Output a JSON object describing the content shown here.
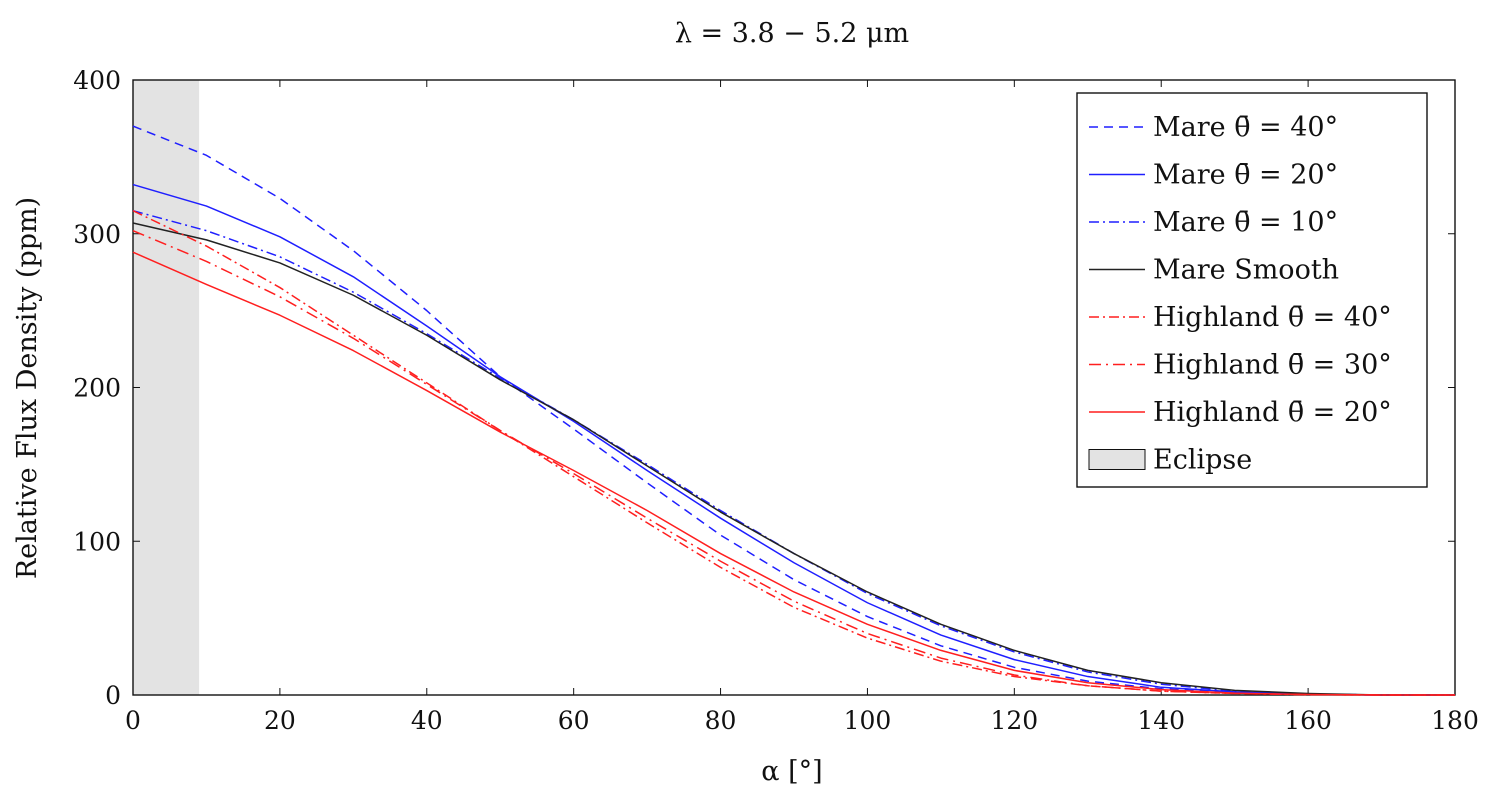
{
  "chart_data": {
    "type": "line",
    "title": "λ = 3.8 − 5.2 μm",
    "xlabel": "α [°]",
    "ylabel": "Relative Flux Density (ppm)",
    "xlim": [
      0,
      180
    ],
    "ylim": [
      0,
      400
    ],
    "xticks": [
      "0",
      "20",
      "40",
      "60",
      "80",
      "100",
      "120",
      "140",
      "160",
      "180"
    ],
    "yticks": [
      "0",
      "100",
      "200",
      "300",
      "400"
    ],
    "grid": false,
    "legend_position": "top-right",
    "shaded_region": {
      "name": "Eclipse",
      "x": [
        0,
        9
      ],
      "color": "#e3e3e3"
    },
    "x": [
      0,
      10,
      20,
      30,
      40,
      50,
      60,
      70,
      80,
      90,
      100,
      110,
      120,
      130,
      140,
      150,
      160,
      170,
      180
    ],
    "series": [
      {
        "name": "Mare θ̄ = 40°",
        "color": "#1f1fff",
        "dash": "dashed",
        "values": [
          370,
          351,
          323,
          289,
          250,
          207,
          173,
          138,
          104,
          75,
          51,
          32,
          18,
          9,
          4,
          1.5,
          0.5,
          0,
          0
        ]
      },
      {
        "name": "Mare θ̄ = 20°",
        "color": "#1f1fff",
        "dash": "solid",
        "values": [
          332,
          318,
          298,
          272,
          240,
          207,
          178,
          146,
          115,
          86,
          60,
          39,
          23,
          12,
          5,
          2,
          0.5,
          0,
          0
        ]
      },
      {
        "name": "Mare θ̄ = 10°",
        "color": "#1f1fff",
        "dash": "dashdot",
        "values": [
          315,
          302,
          285,
          262,
          235,
          206,
          179,
          150,
          120,
          92,
          66,
          45,
          28,
          15,
          7,
          2.5,
          0.6,
          0,
          0
        ]
      },
      {
        "name": "Mare Smooth",
        "color": "#222222",
        "dash": "solid",
        "values": [
          307,
          296,
          281,
          260,
          234,
          205,
          179,
          149,
          119,
          92,
          67,
          46,
          29,
          16,
          8,
          3,
          1,
          0,
          0
        ]
      },
      {
        "name": "Highland θ̄ = 40°",
        "color": "#ff1f1f",
        "dash": "dashdot",
        "values": [
          315,
          292,
          265,
          234,
          203,
          172,
          142,
          112,
          83,
          57,
          37,
          22,
          12,
          6,
          2.5,
          1,
          0.2,
          0,
          0
        ]
      },
      {
        "name": "Highland θ̄ = 30°",
        "color": "#ff1f1f",
        "dash": "dashdotted",
        "values": [
          302,
          282,
          259,
          232,
          202,
          172,
          144,
          115,
          87,
          61,
          40,
          24,
          13,
          6,
          2.5,
          1,
          0.2,
          0,
          0
        ]
      },
      {
        "name": "Highland θ̄ = 20°",
        "color": "#ff1f1f",
        "dash": "solid",
        "values": [
          288,
          267,
          247,
          224,
          198,
          171,
          146,
          120,
          92,
          67,
          46,
          29,
          16,
          8,
          3.5,
          1.2,
          0.3,
          0,
          0
        ]
      }
    ]
  }
}
